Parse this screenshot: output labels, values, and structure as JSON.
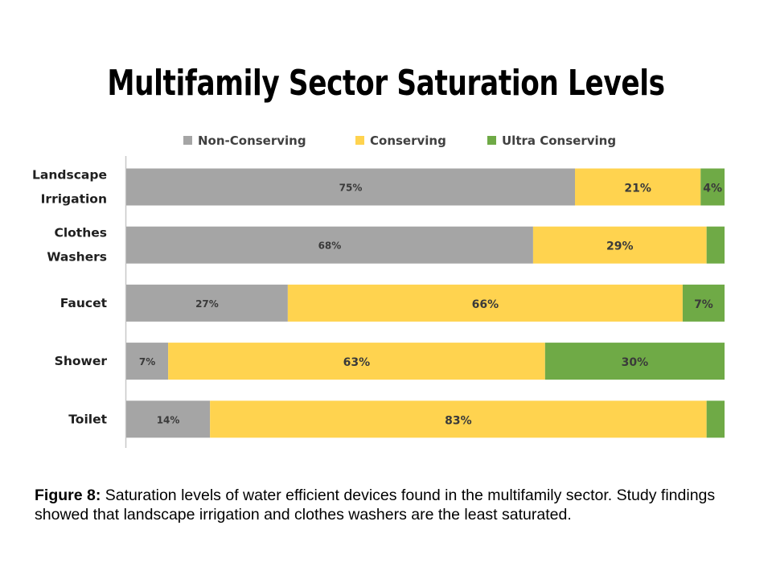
{
  "title": "Multifamily Sector Saturation Levels",
  "caption": {
    "label": "Figure 8:",
    "text": " Saturation levels of water efficient devices found in the multifamily sector. Study findings showed that landscape irrigation and clothes washers are the least saturated."
  },
  "colors": {
    "non_conserving": "#a5a5a5",
    "conserving": "#ffd34f",
    "ultra_conserving": "#6faa46",
    "axis": "#c8c8c8"
  },
  "chart_data": {
    "type": "bar",
    "orientation": "horizontal",
    "stacked": "100%",
    "legend_position": "top",
    "grid": false,
    "xlim": [
      0,
      100
    ],
    "categories": [
      [
        "Landscape",
        "Irrigation"
      ],
      [
        "Clothes",
        "Washers"
      ],
      [
        "Faucet"
      ],
      [
        "Shower"
      ],
      [
        "Toilet"
      ]
    ],
    "series": [
      {
        "name": "Non-Conserving",
        "color": "#a5a5a5",
        "values": [
          75,
          68,
          27,
          7,
          14
        ],
        "labels": [
          "75%",
          "68%",
          "27%",
          "7%",
          "14%"
        ]
      },
      {
        "name": "Conserving",
        "color": "#ffd34f",
        "values": [
          21,
          29,
          66,
          63,
          83
        ],
        "labels": [
          "21%",
          "29%",
          "66%",
          "63%",
          "83%"
        ]
      },
      {
        "name": "Ultra Conserving",
        "color": "#6faa46",
        "values": [
          4,
          3,
          7,
          30,
          3
        ],
        "labels": [
          "4%",
          "",
          "7%",
          "30%",
          ""
        ]
      }
    ]
  }
}
